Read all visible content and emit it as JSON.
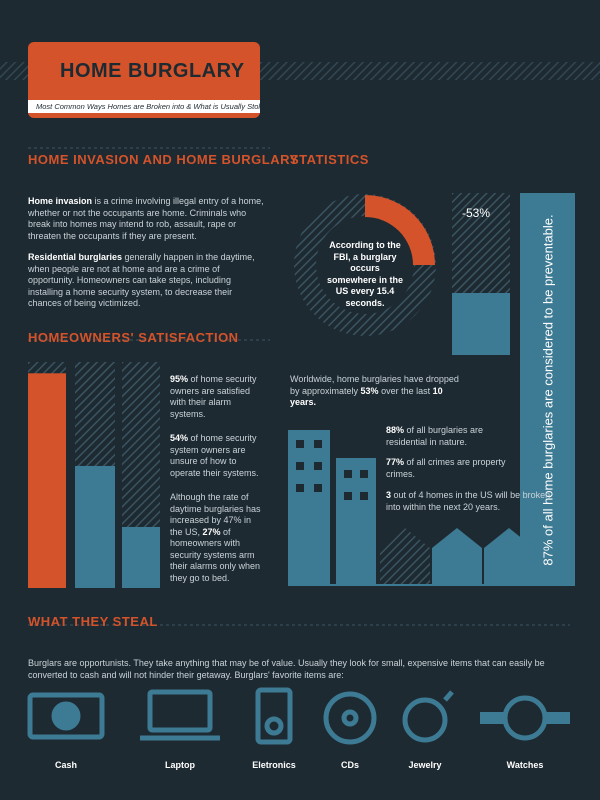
{
  "header": {
    "title": "HOME BURGLARY",
    "subtitle": "Most Common Ways Homes are Broken into & What is Usually Stolen"
  },
  "invasion": {
    "heading": "HOME INVASION AND HOME BURGLARY",
    "paragraphs": [
      {
        "bold": "Home invasion",
        "text": " is a crime involving illegal entry of a home, whether or not the occupants are home. Criminals who break into homes may intend to rob, assault, rape or threaten the occupants if they are present."
      },
      {
        "bold": "Residential burglaries",
        "text": " generally happen in the daytime, when people are not at home and are a crime of opportunity. Homeowners can take steps, including installing a home security system, to decrease their chances of being victimized."
      }
    ]
  },
  "statistics": {
    "heading": "STATISTICS",
    "donut_text": "According to the FBI, a burglary occurs somewhere in the US every 15.4 seconds.",
    "drop_label": "-53%",
    "preventable": "87% of all home burglaries are considered to be preventable.",
    "worldwide": {
      "text": "Worldwide, home burglaries have dropped by approximately ",
      "bold1": "53%",
      "text2": " over the last ",
      "bold2": "10 years."
    },
    "facts": [
      {
        "bold": "88%",
        "text": " of all burglaries are residential in nature."
      },
      {
        "bold": "77%",
        "text": " of all crimes are property crimes."
      },
      {
        "bold": "3",
        "text": " out of 4 homes in the US will be broken into within the next 20 years."
      }
    ]
  },
  "satisfaction": {
    "heading": "HOMEOWNERS' SATISFACTION",
    "items": [
      {
        "value": 95,
        "value_label": "95%",
        "text": " of home security owners are satisfied with their alarm systems."
      },
      {
        "value": 54,
        "value_label": "54%",
        "text": " of home security system owners are unsure of how to operate their systems."
      },
      {
        "value": 27,
        "value_label": "27%",
        "lead": "Although the rate of daytime burglaries has increased by 47% in the US, ",
        "text": " of homeowners with security systems arm their alarms only when they go to bed."
      }
    ]
  },
  "steal": {
    "heading": "WHAT THEY STEAL",
    "intro": "Burglars are opportunists. They take anything that may be of value. Usually they look for small, expensive items that can easily be converted to cash and will not hinder their getaway. Burglars' favorite items are:",
    "items": [
      "Cash",
      "Laptop",
      "Eletronics",
      "CDs",
      "Jewelry",
      "Watches"
    ]
  }
}
